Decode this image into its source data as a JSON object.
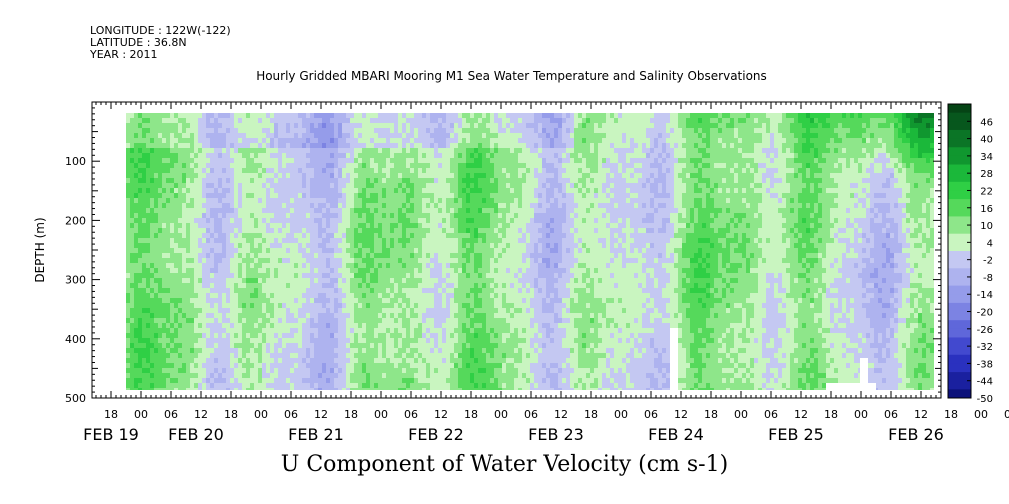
{
  "header": {
    "longitude": "LONGITUDE : 122W(-122)",
    "latitude": "LATITUDE : 36.8N",
    "year": "YEAR : 2011",
    "title": "Hourly Gridded MBARI Mooring M1 Sea Water Temperature and Salinity Observations"
  },
  "chart_data": {
    "type": "heatmap",
    "title": "Hourly Gridded MBARI Mooring M1 Sea Water Temperature and Salinity Observations",
    "subtitle": "U Component of Water Velocity (cm s-1)",
    "ylabel": "DEPTH (m)",
    "xlabel": "",
    "y_ticks": [
      "100",
      "200",
      "300",
      "400",
      "500"
    ],
    "ylim": [
      0,
      500
    ],
    "y_inverted": true,
    "x_hour_labels": [
      "18",
      "00",
      "06",
      "12",
      "18",
      "00",
      "06",
      "12",
      "18",
      "00",
      "06",
      "12",
      "18",
      "00",
      "06",
      "12",
      "18",
      "00",
      "06",
      "12",
      "18",
      "00",
      "06",
      "12",
      "18",
      "00",
      "06",
      "12",
      "18",
      "00",
      "06",
      "12"
    ],
    "x_day_labels": [
      "FEB 19",
      "FEB 20",
      "FEB 21",
      "FEB 22",
      "FEB 23",
      "FEB 24",
      "FEB 25",
      "FEB 26"
    ],
    "colorbar_labels": [
      "46",
      "40",
      "34",
      "28",
      "22",
      "16",
      "10",
      "4",
      "-2",
      "-8",
      "-14",
      "-20",
      "-26",
      "-32",
      "-38",
      "-44",
      "-50"
    ],
    "colorbar_range": [
      -50,
      52
    ],
    "data_extent": {
      "depth_top_m": 15,
      "depth_bottom_m": 485
    },
    "dominant_pattern": "alternating green (+4 to +16) and blue/purple (-2 to -20) vertical bands; stronger positive (+22 to +40) near surface on FEB 25-26; white gaps near bottom on FEB 24 and FEB 26"
  },
  "colors": {
    "positive_ramp": [
      "#c9f5c0",
      "#8ee68a",
      "#55d95b",
      "#2fcf45",
      "#1bb83a",
      "#10972f",
      "#0b7526",
      "#07571d",
      "#054415"
    ],
    "negative_ramp": [
      "#c4c8f2",
      "#aeb3ef",
      "#959cea",
      "#7c83e3",
      "#5f67da",
      "#4249cf",
      "#2a31bf",
      "#1a209f",
      "#0c117a"
    ]
  }
}
